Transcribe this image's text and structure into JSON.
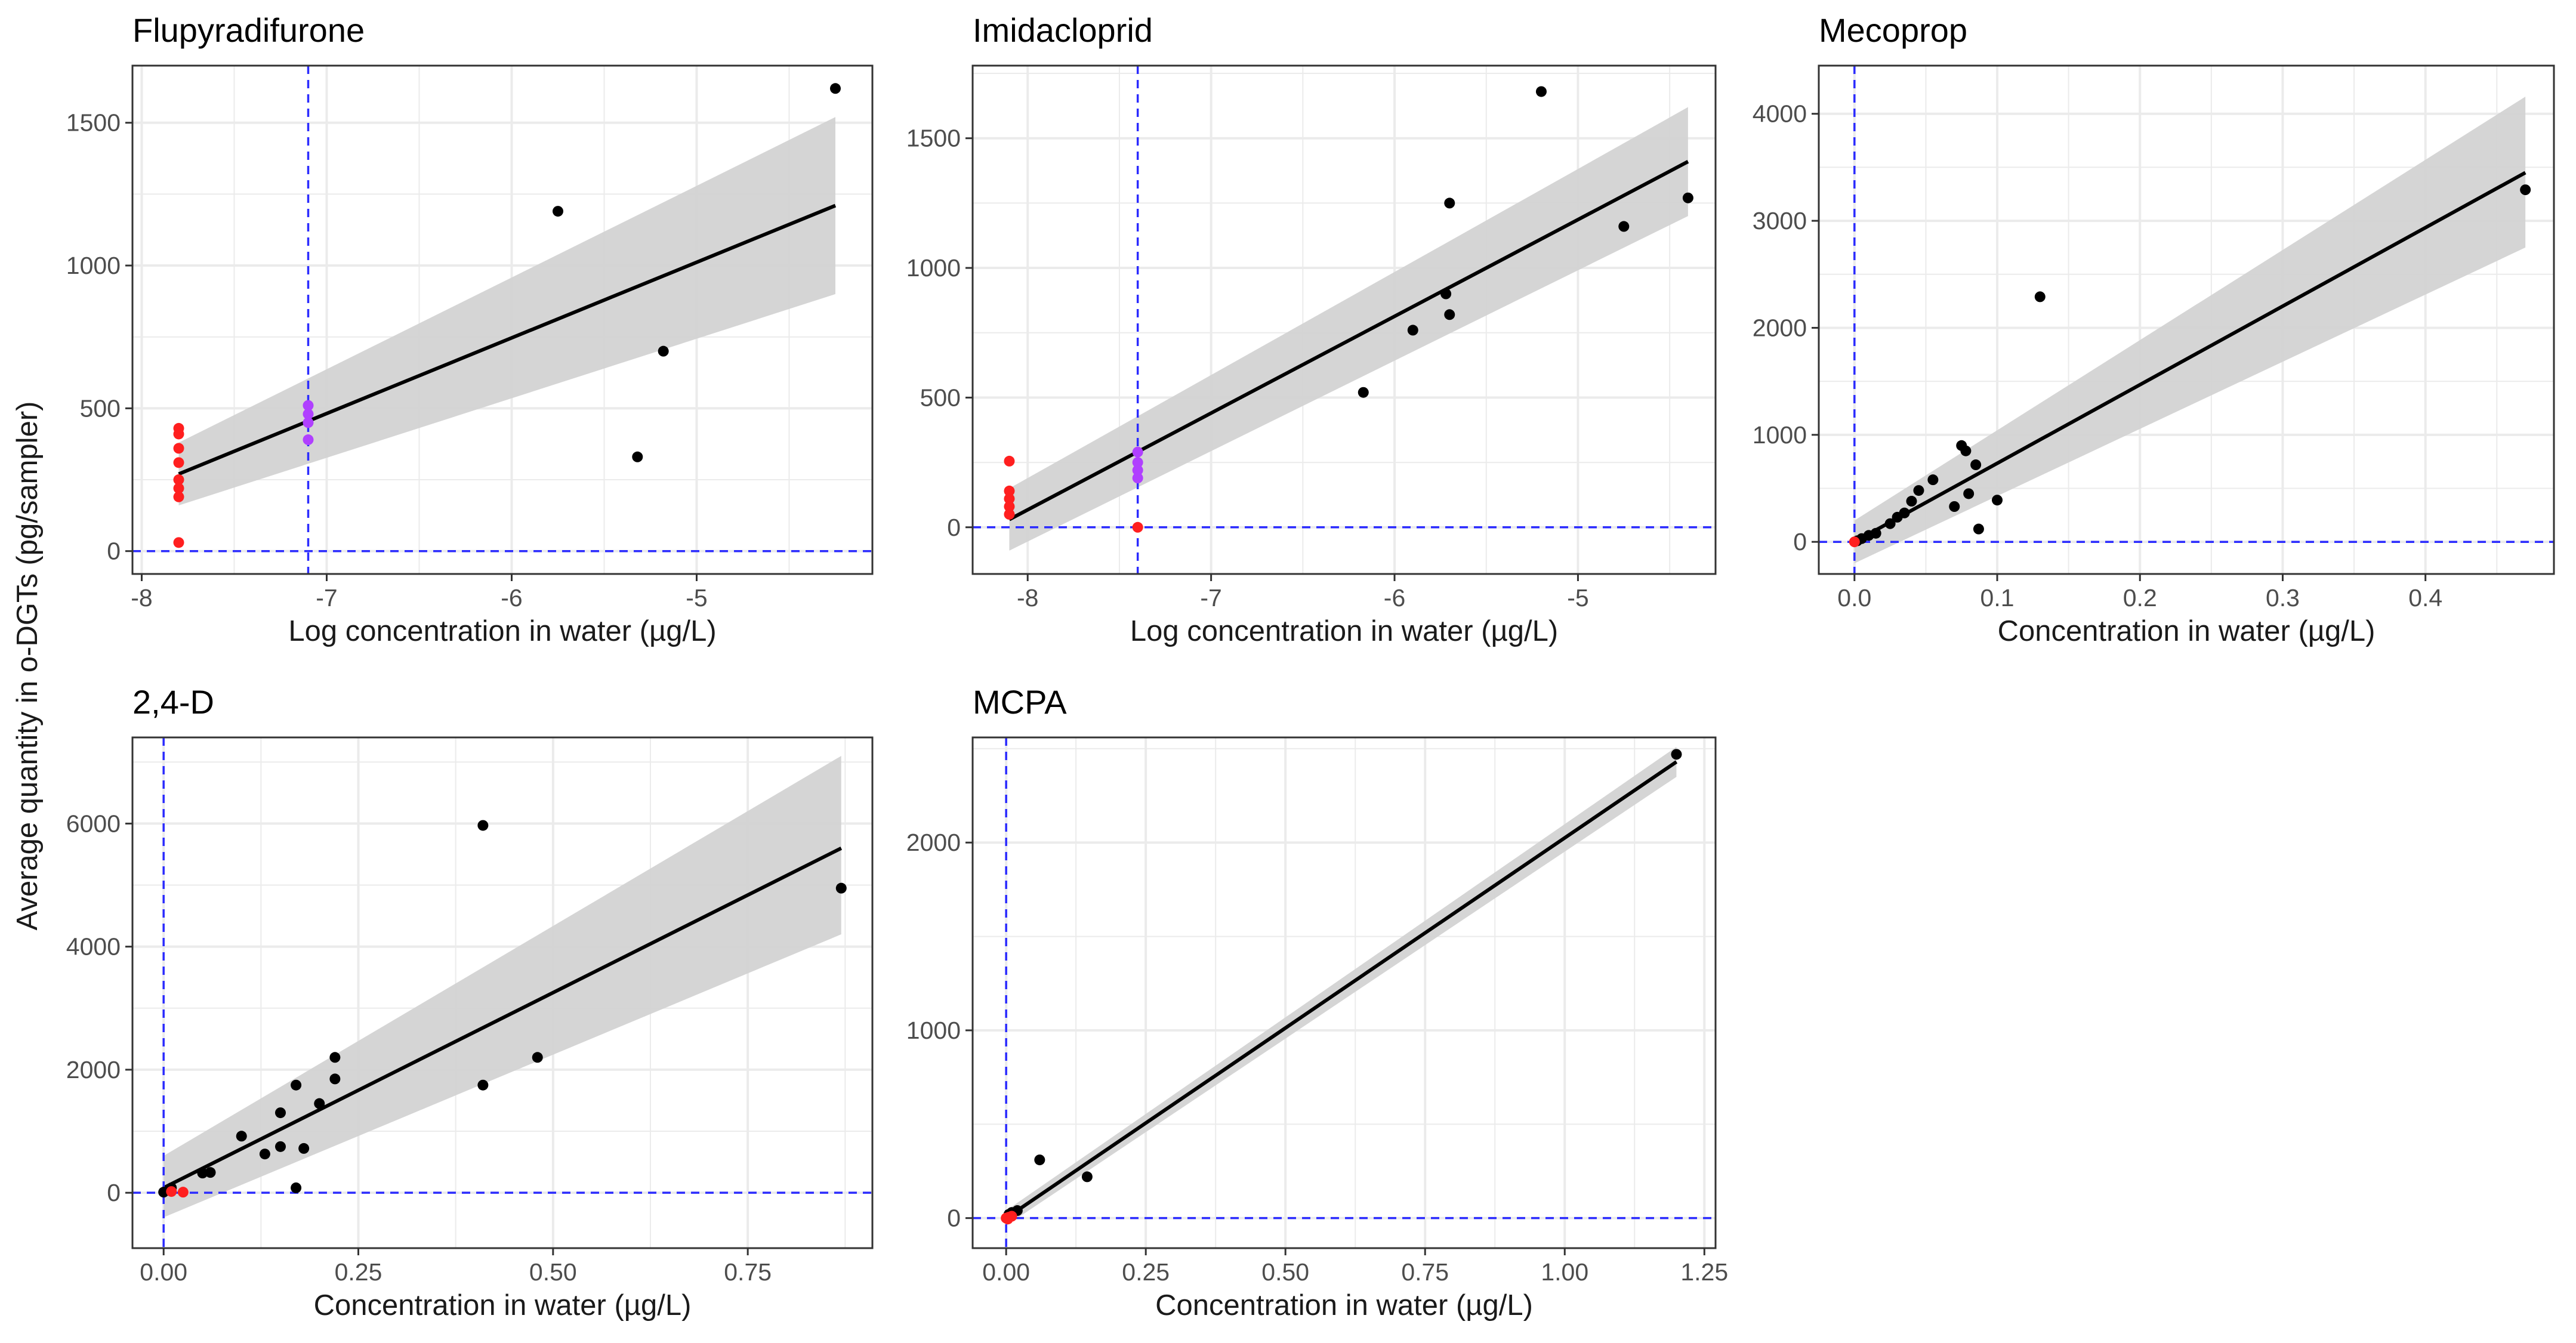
{
  "figure": {
    "shared_ylabel": "Average quantity in o-DGTs (pg/sampler)"
  },
  "colors": {
    "point": "#000000",
    "below_lod": "#ff1f1f",
    "near_lod": "#b040ff",
    "fit_line": "#000000",
    "band": "#d3d3d3",
    "guide": "#2b2bff",
    "grid": "#ebebeb",
    "border": "#333333"
  },
  "chart_data": [
    {
      "type": "scatter",
      "title": "Flupyradifurone",
      "xlabel": "Log concentration in water (µg/L)",
      "ylabel": "Average quantity in o-DGTs (pg/sampler)",
      "xlim": [
        -8.05,
        -4.05
      ],
      "ylim": [
        -80,
        1700
      ],
      "xticks": [
        -8,
        -7,
        -6,
        -5
      ],
      "xtick_labels": [
        "-8",
        "-7",
        "-6",
        "-5"
      ],
      "yticks": [
        0,
        500,
        1000,
        1500
      ],
      "ytick_labels": [
        "0",
        "500",
        "1000",
        "1500"
      ],
      "vline": -7.1,
      "hline": 0,
      "fit": {
        "x": [
          -7.8,
          -4.25
        ],
        "y": [
          270,
          1210
        ],
        "band_lower": [
          160,
          900
        ],
        "band_upper": [
          380,
          1520
        ]
      },
      "series": [
        {
          "name": "above LOD",
          "color_key": "point",
          "points": [
            [
              -4.25,
              1620
            ],
            [
              -5.75,
              1190
            ],
            [
              -5.18,
              700
            ],
            [
              -5.32,
              330
            ]
          ]
        },
        {
          "name": "below LOD",
          "color_key": "below_lod",
          "points": [
            [
              -7.8,
              430
            ],
            [
              -7.8,
              410
            ],
            [
              -7.8,
              360
            ],
            [
              -7.8,
              310
            ],
            [
              -7.8,
              250
            ],
            [
              -7.8,
              220
            ],
            [
              -7.8,
              190
            ],
            [
              -7.8,
              30
            ]
          ]
        },
        {
          "name": "near LOD",
          "color_key": "near_lod",
          "points": [
            [
              -7.1,
              510
            ],
            [
              -7.1,
              480
            ],
            [
              -7.1,
              450
            ],
            [
              -7.1,
              390
            ]
          ]
        }
      ]
    },
    {
      "type": "scatter",
      "title": "Imidacloprid",
      "xlabel": "Log concentration in water (µg/L)",
      "ylabel": "",
      "xlim": [
        -8.3,
        -4.25
      ],
      "ylim": [
        -180,
        1780
      ],
      "xticks": [
        -8,
        -7,
        -6,
        -5
      ],
      "xtick_labels": [
        "-8",
        "-7",
        "-6",
        "-5"
      ],
      "yticks": [
        0,
        500,
        1000,
        1500
      ],
      "ytick_labels": [
        "0",
        "500",
        "1000",
        "1500"
      ],
      "vline": -7.4,
      "hline": 0,
      "fit": {
        "x": [
          -8.1,
          -4.4
        ],
        "y": [
          30,
          1410
        ],
        "band_lower": [
          -90,
          1200
        ],
        "band_upper": [
          150,
          1620
        ]
      },
      "series": [
        {
          "name": "above LOD",
          "color_key": "point",
          "points": [
            [
              -5.2,
              1680
            ],
            [
              -5.7,
              1250
            ],
            [
              -4.4,
              1270
            ],
            [
              -4.75,
              1160
            ],
            [
              -5.72,
              900
            ],
            [
              -5.7,
              820
            ],
            [
              -5.9,
              760
            ],
            [
              -6.17,
              520
            ]
          ]
        },
        {
          "name": "below LOD",
          "color_key": "below_lod",
          "points": [
            [
              -8.1,
              255
            ],
            [
              -8.1,
              140
            ],
            [
              -8.1,
              110
            ],
            [
              -8.1,
              80
            ],
            [
              -8.1,
              50
            ],
            [
              -7.4,
              0
            ]
          ]
        },
        {
          "name": "near LOD",
          "color_key": "near_lod",
          "points": [
            [
              -7.4,
              290
            ],
            [
              -7.4,
              250
            ],
            [
              -7.4,
              220
            ],
            [
              -7.4,
              190
            ]
          ]
        }
      ]
    },
    {
      "type": "scatter",
      "title": "Mecoprop",
      "xlabel": "Concentration in water (µg/L)",
      "ylabel": "",
      "xlim": [
        -0.025,
        0.49
      ],
      "ylim": [
        -300,
        4450
      ],
      "xticks": [
        0.0,
        0.1,
        0.2,
        0.3,
        0.4
      ],
      "xtick_labels": [
        "0.0",
        "0.1",
        "0.2",
        "0.3",
        "0.4"
      ],
      "yticks": [
        0,
        1000,
        2000,
        3000,
        4000
      ],
      "ytick_labels": [
        "0",
        "1000",
        "2000",
        "3000",
        "4000"
      ],
      "vline": 0,
      "hline": 0,
      "fit": {
        "x": [
          0.0,
          0.47
        ],
        "y": [
          0,
          3450
        ],
        "band_lower": [
          -200,
          2750
        ],
        "band_upper": [
          200,
          4160
        ]
      },
      "series": [
        {
          "name": "above LOD",
          "color_key": "point",
          "points": [
            [
              0.47,
              3290
            ],
            [
              0.13,
              2290
            ],
            [
              0.075,
              900
            ],
            [
              0.078,
              850
            ],
            [
              0.085,
              720
            ],
            [
              0.08,
              450
            ],
            [
              0.1,
              390
            ],
            [
              0.07,
              330
            ],
            [
              0.087,
              120
            ],
            [
              0.055,
              580
            ],
            [
              0.045,
              480
            ],
            [
              0.04,
              380
            ],
            [
              0.035,
              270
            ],
            [
              0.03,
              230
            ],
            [
              0.025,
              170
            ],
            [
              0.015,
              80
            ],
            [
              0.01,
              60
            ],
            [
              0.005,
              30
            ],
            [
              0.002,
              10
            ]
          ]
        },
        {
          "name": "below LOD",
          "color_key": "below_lod",
          "points": [
            [
              0.0,
              0
            ]
          ]
        }
      ]
    },
    {
      "type": "scatter",
      "title": "2,4-D",
      "xlabel": "Concentration in water (µg/L)",
      "ylabel": "",
      "xlim": [
        -0.04,
        0.91
      ],
      "ylim": [
        -900,
        7400
      ],
      "xticks": [
        0.0,
        0.25,
        0.5,
        0.75
      ],
      "xtick_labels": [
        "0.00",
        "0.25",
        "0.50",
        "0.75"
      ],
      "yticks": [
        0,
        2000,
        4000,
        6000
      ],
      "ytick_labels": [
        "0",
        "2000",
        "4000",
        "6000"
      ],
      "vline": 0,
      "hline": 0,
      "fit": {
        "x": [
          0.0,
          0.87
        ],
        "y": [
          80,
          5600
        ],
        "band_lower": [
          -400,
          4200
        ],
        "band_upper": [
          600,
          7100
        ]
      },
      "series": [
        {
          "name": "above LOD",
          "color_key": "point",
          "points": [
            [
              0.41,
              5970
            ],
            [
              0.87,
              4950
            ],
            [
              0.48,
              2200
            ],
            [
              0.41,
              1750
            ],
            [
              0.22,
              2200
            ],
            [
              0.22,
              1850
            ],
            [
              0.2,
              1450
            ],
            [
              0.17,
              1750
            ],
            [
              0.15,
              1300
            ],
            [
              0.15,
              750
            ],
            [
              0.18,
              720
            ],
            [
              0.13,
              630
            ],
            [
              0.1,
              920
            ],
            [
              0.06,
              330
            ],
            [
              0.05,
              320
            ],
            [
              0.17,
              80
            ],
            [
              0.01,
              80
            ],
            [
              0.0,
              10
            ]
          ]
        },
        {
          "name": "below LOD",
          "color_key": "below_lod",
          "points": [
            [
              0.01,
              20
            ],
            [
              0.025,
              10
            ]
          ]
        }
      ]
    },
    {
      "type": "scatter",
      "title": "MCPA",
      "xlabel": "Concentration in water (µg/L)",
      "ylabel": "",
      "xlim": [
        -0.06,
        1.27
      ],
      "ylim": [
        -160,
        2560
      ],
      "xticks": [
        0.0,
        0.25,
        0.5,
        0.75,
        1.0,
        1.25
      ],
      "xtick_labels": [
        "0.00",
        "0.25",
        "0.50",
        "0.75",
        "1.00",
        "1.25"
      ],
      "yticks": [
        0,
        1000,
        2000
      ],
      "ytick_labels": [
        "0",
        "1000",
        "2000"
      ],
      "vline": 0,
      "hline": 0,
      "fit": {
        "x": [
          0.0,
          1.2
        ],
        "y": [
          0,
          2430
        ],
        "band_lower": [
          -40,
          2350
        ],
        "band_upper": [
          40,
          2510
        ]
      },
      "series": [
        {
          "name": "above LOD",
          "color_key": "point",
          "points": [
            [
              1.2,
              2470
            ],
            [
              0.06,
              310
            ],
            [
              0.145,
              220
            ],
            [
              0.02,
              40
            ],
            [
              0.01,
              30
            ],
            [
              0.005,
              20
            ]
          ]
        },
        {
          "name": "below LOD",
          "color_key": "below_lod",
          "points": [
            [
              0.0,
              0
            ],
            [
              0.005,
              5
            ],
            [
              0.01,
              10
            ],
            [
              0.003,
              -5
            ]
          ]
        }
      ]
    }
  ]
}
